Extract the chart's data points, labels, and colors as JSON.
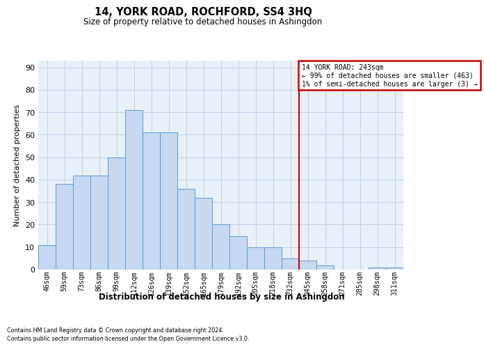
{
  "title1": "14, YORK ROAD, ROCHFORD, SS4 3HQ",
  "title2": "Size of property relative to detached houses in Ashingdon",
  "xlabel": "Distribution of detached houses by size in Ashingdon",
  "ylabel": "Number of detached properties",
  "categories": [
    "46sqm",
    "59sqm",
    "73sqm",
    "86sqm",
    "99sqm",
    "112sqm",
    "126sqm",
    "139sqm",
    "152sqm",
    "165sqm",
    "179sqm",
    "192sqm",
    "205sqm",
    "218sqm",
    "232sqm",
    "245sqm",
    "258sqm",
    "271sqm",
    "285sqm",
    "298sqm",
    "311sqm"
  ],
  "values": [
    11,
    38,
    42,
    42,
    50,
    71,
    61,
    61,
    36,
    32,
    20,
    15,
    10,
    10,
    5,
    4,
    2,
    0,
    0,
    1,
    1
  ],
  "bar_color": "#c6d9f1",
  "bar_edge_color": "#5b9bd5",
  "vline_x": 14.5,
  "annotation_box_text": "14 YORK ROAD: 243sqm\n← 99% of detached houses are smaller (463)\n1% of semi-detached houses are larger (3) →",
  "vline_color": "#cc0000",
  "box_edge_color": "#cc0000",
  "grid_color": "#c0d0e8",
  "background_color": "#e8f0f8",
  "ylim": [
    0,
    93
  ],
  "yticks": [
    0,
    10,
    20,
    30,
    40,
    50,
    60,
    70,
    80,
    90
  ],
  "footer1": "Contains HM Land Registry data © Crown copyright and database right 2024.",
  "footer2": "Contains public sector information licensed under the Open Government Licence v3.0."
}
